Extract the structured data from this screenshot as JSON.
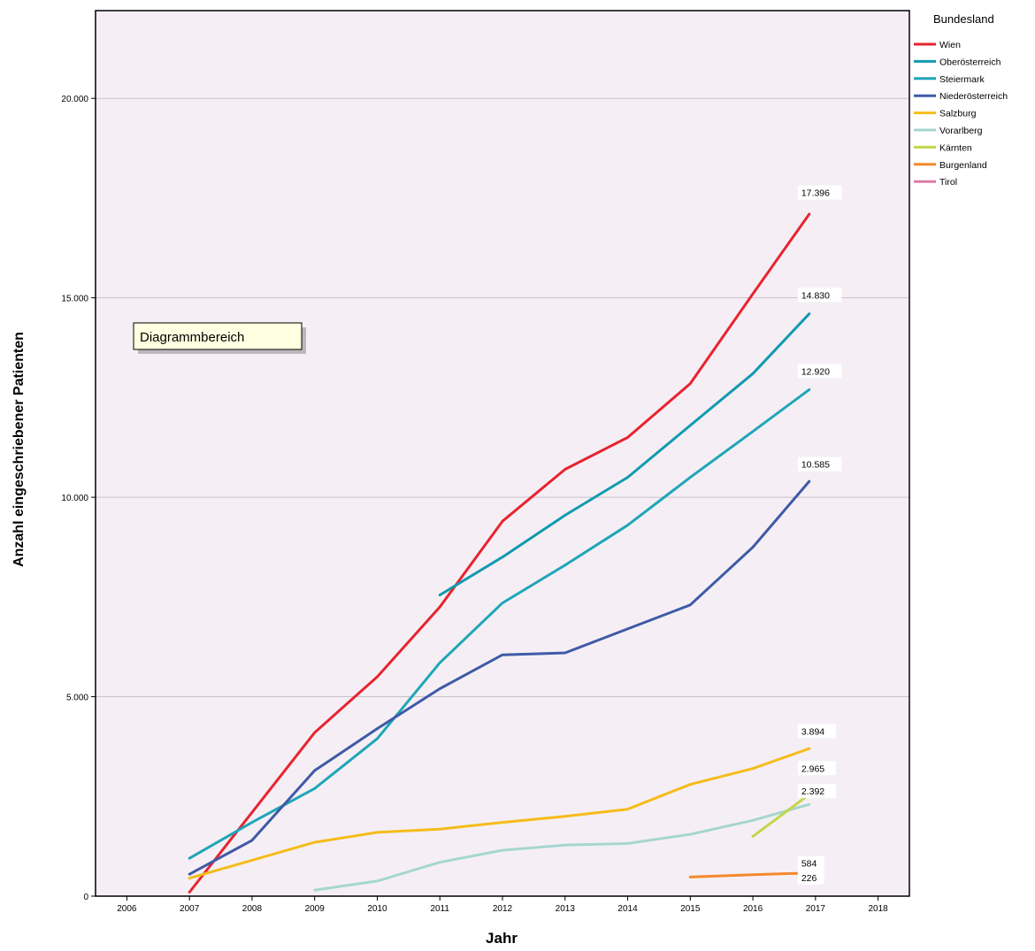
{
  "chart_data": {
    "type": "line",
    "xlabel": "Jahr",
    "ylabel": "Anzahl eingeschriebener Patienten",
    "x_ticks": [
      "2006",
      "2007",
      "2008",
      "2009",
      "2010",
      "2011",
      "2012",
      "2013",
      "2014",
      "2015",
      "2016",
      "2017",
      "2018"
    ],
    "xlim": [
      2006,
      2018
    ],
    "ylim": [
      0,
      22200
    ],
    "y_ticks": [
      0,
      5000,
      10000,
      15000,
      20000
    ],
    "y_tick_labels": [
      "0",
      "5.000",
      "10.000",
      "15.000",
      "20.000"
    ],
    "grid": true,
    "plot_background": "#f5eff5",
    "legend": {
      "title": "Bundesland",
      "placement": "right"
    },
    "series": [
      {
        "name": "Wien",
        "color": "#e8242f",
        "x": [
          2007,
          2008,
          2009,
          2010,
          2011,
          2012,
          2013,
          2014,
          2015,
          2016,
          2016.9
        ],
        "y": [
          100,
          2100,
          4100,
          5500,
          7250,
          9400,
          10700,
          11500,
          12850,
          15100,
          17100
        ],
        "end_label": "17.396"
      },
      {
        "name": "Oberösterreich",
        "color": "#129ab0",
        "x": [
          2011,
          2012,
          2013,
          2014,
          2015,
          2016,
          2016.9
        ],
        "y": [
          7550,
          8500,
          9550,
          10500,
          11800,
          13100,
          14600
        ],
        "end_label": "14.830"
      },
      {
        "name": "Steiermark",
        "color": "#1fa6b8",
        "x": [
          2007,
          2008,
          2009,
          2010,
          2011,
          2012,
          2013,
          2014,
          2015,
          2016,
          2016.9
        ],
        "y": [
          950,
          1850,
          2700,
          3950,
          5850,
          7350,
          8300,
          9300,
          10500,
          11650,
          12700
        ],
        "end_label": "12.920"
      },
      {
        "name": "Niederösterreich",
        "color": "#3f5aa6",
        "x": [
          2007,
          2008,
          2009,
          2010,
          2011,
          2012,
          2013,
          2014,
          2015,
          2016,
          2016.9
        ],
        "y": [
          550,
          1400,
          3150,
          4200,
          5200,
          6050,
          6100,
          6700,
          7300,
          8750,
          10400
        ],
        "end_label": "10.585"
      },
      {
        "name": "Salzburg",
        "color": "#f5bc1a",
        "x": [
          2007,
          2008,
          2009,
          2010,
          2011,
          2012,
          2013,
          2014,
          2015,
          2016,
          2016.9
        ],
        "y": [
          450,
          900,
          1350,
          1600,
          1680,
          1850,
          2000,
          2180,
          2800,
          3200,
          3700
        ],
        "end_label": "3.894"
      },
      {
        "name": "Vorarlberg",
        "color": "#a6d6cf",
        "x": [
          2009,
          2010,
          2011,
          2012,
          2013,
          2014,
          2015,
          2016,
          2016.9
        ],
        "y": [
          150,
          380,
          850,
          1150,
          1280,
          1320,
          1550,
          1900,
          2300
        ],
        "end_label": "2.392"
      },
      {
        "name": "Kärnten",
        "color": "#c3d64a",
        "x": [
          2016,
          2016.9
        ],
        "y": [
          1500,
          2550
        ],
        "end_label": "2.965"
      },
      {
        "name": "Burgenland",
        "color": "#f4882c",
        "x": [
          2015,
          2016,
          2016.9
        ],
        "y": [
          480,
          540,
          580
        ],
        "end_label": "584"
      },
      {
        "name": "Tirol",
        "color": "#e07aa8",
        "x": [],
        "y": [],
        "end_label": "226"
      }
    ]
  },
  "tooltip": {
    "text": "Diagrammbereich"
  }
}
